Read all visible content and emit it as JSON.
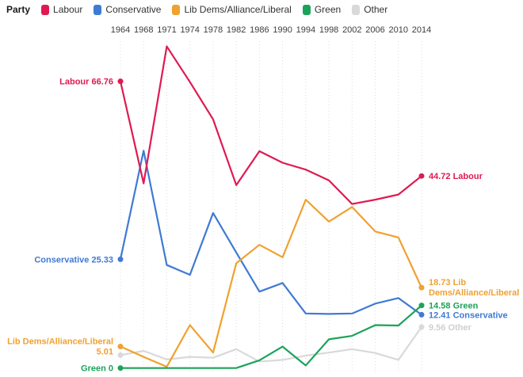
{
  "legend": {
    "title": "Party",
    "items": [
      {
        "label": "Labour",
        "color": "#df1a51"
      },
      {
        "label": "Conservative",
        "color": "#3f7ad4"
      },
      {
        "label": "Lib Dems/Alliance/Liberal",
        "color": "#f0a12f"
      },
      {
        "label": "Green",
        "color": "#1ca35a"
      },
      {
        "label": "Other",
        "color": "#d9d9d9"
      }
    ]
  },
  "chart_data": {
    "type": "line",
    "x": [
      1964,
      1968,
      1971,
      1974,
      1978,
      1982,
      1986,
      1990,
      1994,
      1998,
      2002,
      2006,
      2010,
      2014
    ],
    "xlabel": "",
    "ylabel": "",
    "ylim": [
      0,
      75
    ],
    "grid": "vertical-dotted",
    "legend_position": "top-left",
    "series": [
      {
        "name": "Labour",
        "color": "#df1a51",
        "values": [
          66.76,
          43.0,
          74.9,
          66.6,
          57.9,
          42.6,
          50.5,
          47.8,
          46.2,
          43.7,
          38.2,
          39.2,
          40.4,
          44.72
        ],
        "start_label": [
          "Labour 66.76"
        ],
        "end_label": [
          "44.72 Labour"
        ]
      },
      {
        "name": "Conservative",
        "color": "#3f7ad4",
        "values": [
          25.33,
          50.6,
          24.0,
          21.7,
          36.1,
          26.9,
          17.8,
          19.8,
          12.7,
          12.6,
          12.7,
          15.0,
          16.3,
          12.41
        ],
        "start_label": [
          "Conservative 25.33"
        ],
        "end_label": [
          "12.41 Conservative"
        ]
      },
      {
        "name": "Lib Dems/Alliance/Liberal",
        "color": "#f0a12f",
        "values": [
          5.01,
          2.6,
          0.3,
          10.0,
          3.6,
          24.4,
          28.7,
          25.8,
          39.2,
          34.1,
          37.5,
          31.8,
          30.4,
          18.73
        ],
        "start_label": [
          "Lib Dems/Alliance/Liberal",
          "5.01"
        ],
        "end_label": [
          "18.73 Lib",
          "Dems/Alliance/Liberal"
        ]
      },
      {
        "name": "Green",
        "color": "#1ca35a",
        "values": [
          0,
          0,
          0,
          0,
          0,
          0,
          1.8,
          5.0,
          0.6,
          6.7,
          7.5,
          10.0,
          9.9,
          14.58
        ],
        "start_label": [
          "Green 0"
        ],
        "end_label": [
          "14.58 Green"
        ]
      },
      {
        "name": "Other",
        "color": "#d9d9d9",
        "label_color": "#cfcfcf",
        "values": [
          3.0,
          4.0,
          2.0,
          2.6,
          2.4,
          4.4,
          1.5,
          1.9,
          2.9,
          3.6,
          4.4,
          3.5,
          1.9,
          9.56
        ],
        "start_label": null,
        "end_label": [
          "9.56 Other"
        ]
      }
    ]
  }
}
